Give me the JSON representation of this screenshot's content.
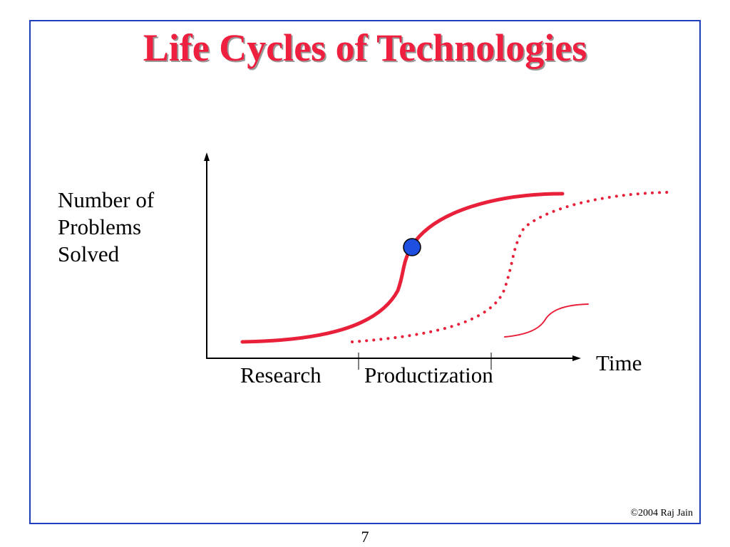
{
  "slide": {
    "title": "Life Cycles of Technologies",
    "footer_copyright": "©2004 Raj Jain",
    "page_number": "7"
  },
  "diagram": {
    "y_axis_label_lines": [
      "Number of",
      "Problems",
      "Solved"
    ],
    "x_axis_label": "Time",
    "phase_labels": [
      "Research",
      "Productization"
    ],
    "colors": {
      "title": "#ef1f3f",
      "curves": "#e8203a",
      "marker": "#1e4fe0",
      "frame": "#1f3fbf",
      "axes": "#000000"
    }
  }
}
